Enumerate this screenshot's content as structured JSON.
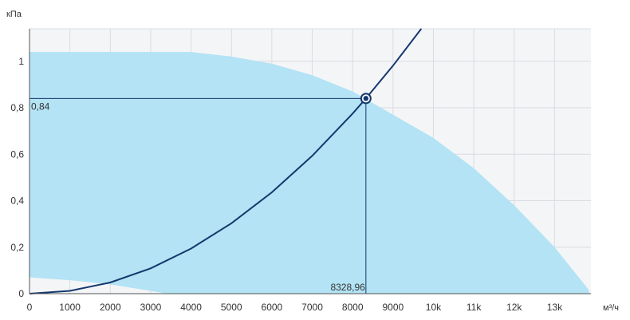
{
  "chart_data": {
    "type": "area",
    "ylabel": "кПа",
    "xlabel": "м³/ч",
    "xlim": [
      0,
      13900
    ],
    "ylim": [
      0,
      1.14
    ],
    "grid": true,
    "x_ticks": [
      0,
      1000,
      2000,
      3000,
      4000,
      5000,
      6000,
      7000,
      8000,
      9000,
      10000,
      11000,
      12000,
      13000
    ],
    "x_tick_labels": [
      "0",
      "1000",
      "2000",
      "3000",
      "4000",
      "5000",
      "6000",
      "7000",
      "8000",
      "9000",
      "10k",
      "11k",
      "12k",
      "13k"
    ],
    "y_ticks": [
      0,
      0.2,
      0.4,
      0.6,
      0.8,
      1.0
    ],
    "y_tick_labels": [
      "0",
      "0,2",
      "0,4",
      "0,6",
      "0,8",
      "1"
    ],
    "operating_region": {
      "upper_boundary": [
        [
          0,
          1.04
        ],
        [
          1000,
          1.04
        ],
        [
          2000,
          1.04
        ],
        [
          3000,
          1.04
        ],
        [
          4000,
          1.04
        ],
        [
          5000,
          1.02
        ],
        [
          6000,
          0.99
        ],
        [
          7000,
          0.94
        ],
        [
          8000,
          0.87
        ],
        [
          9000,
          0.77
        ],
        [
          10000,
          0.67
        ],
        [
          11000,
          0.54
        ],
        [
          12000,
          0.38
        ],
        [
          13000,
          0.2
        ],
        [
          13600,
          0.07
        ],
        [
          13850,
          0.015
        ]
      ],
      "lower_boundary": [
        [
          0,
          0.07
        ],
        [
          1000,
          0.058
        ],
        [
          2000,
          0.04
        ],
        [
          3000,
          0.012
        ],
        [
          3400,
          0.0
        ],
        [
          13850,
          0.0
        ]
      ],
      "color": "#b3e3f4"
    },
    "system_curve": {
      "points": [
        [
          0,
          0.0
        ],
        [
          1000,
          0.012
        ],
        [
          2000,
          0.048
        ],
        [
          3000,
          0.109
        ],
        [
          4000,
          0.194
        ],
        [
          5000,
          0.303
        ],
        [
          6000,
          0.436
        ],
        [
          7000,
          0.593
        ],
        [
          8000,
          0.775
        ],
        [
          8328.96,
          0.84
        ],
        [
          9000,
          0.981
        ],
        [
          9700,
          1.14
        ]
      ],
      "color": "#14386e"
    },
    "operating_point": {
      "x": 8328.96,
      "y": 0.84,
      "x_label": "8328,96",
      "y_label": "0,84"
    }
  }
}
